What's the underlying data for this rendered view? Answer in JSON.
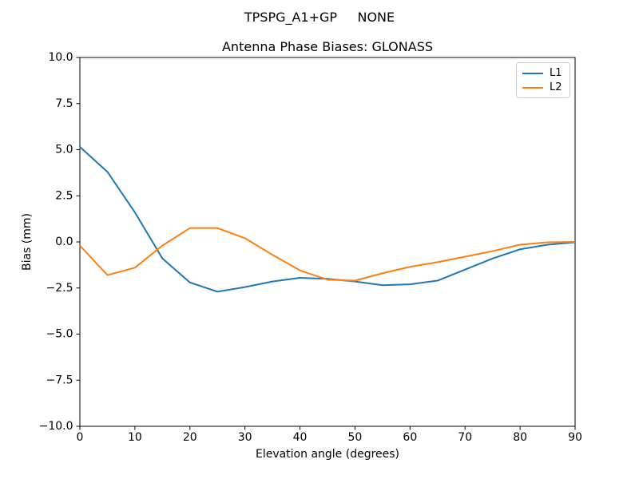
{
  "figure": {
    "suptitle": "TPSPG_A1+GP     NONE"
  },
  "chart_data": {
    "type": "line",
    "suptitle": "TPSPG_A1+GP     NONE",
    "title": "Antenna Phase Biases: GLONASS",
    "xlabel": "Elevation angle (degrees)",
    "ylabel": "Bias (mm)",
    "xlim": [
      0,
      90
    ],
    "ylim": [
      -10,
      10
    ],
    "xticks": [
      0,
      10,
      20,
      30,
      40,
      50,
      60,
      70,
      80,
      90
    ],
    "xtick_labels": [
      "0",
      "10",
      "20",
      "30",
      "40",
      "50",
      "60",
      "70",
      "80",
      "90"
    ],
    "yticks": [
      10,
      7.5,
      5,
      2.5,
      0,
      -2.5,
      -5,
      -7.5,
      -10
    ],
    "ytick_labels": [
      "10.0",
      "7.5",
      "5.0",
      "2.5",
      "0.0",
      "−2.5",
      "−5.0",
      "−7.5",
      "−10.0"
    ],
    "grid": false,
    "legend": {
      "position": "upper right",
      "entries": [
        "L1",
        "L2"
      ]
    },
    "x": [
      0,
      5,
      10,
      15,
      20,
      25,
      30,
      35,
      40,
      45,
      50,
      55,
      60,
      65,
      70,
      75,
      80,
      85,
      90
    ],
    "series": [
      {
        "name": "L1",
        "color": "#1f77b4",
        "values": [
          5.15,
          3.8,
          1.6,
          -0.9,
          -2.2,
          -2.7,
          -2.45,
          -2.15,
          -1.95,
          -2.0,
          -2.15,
          -2.35,
          -2.3,
          -2.1,
          -1.5,
          -0.9,
          -0.4,
          -0.15,
          -0.02
        ]
      },
      {
        "name": "L2",
        "color": "#ff7f0e",
        "values": [
          -0.2,
          -1.8,
          -1.4,
          -0.2,
          0.75,
          0.75,
          0.2,
          -0.7,
          -1.55,
          -2.05,
          -2.1,
          -1.7,
          -1.35,
          -1.1,
          -0.8,
          -0.5,
          -0.15,
          -0.02,
          0.0
        ]
      }
    ]
  }
}
